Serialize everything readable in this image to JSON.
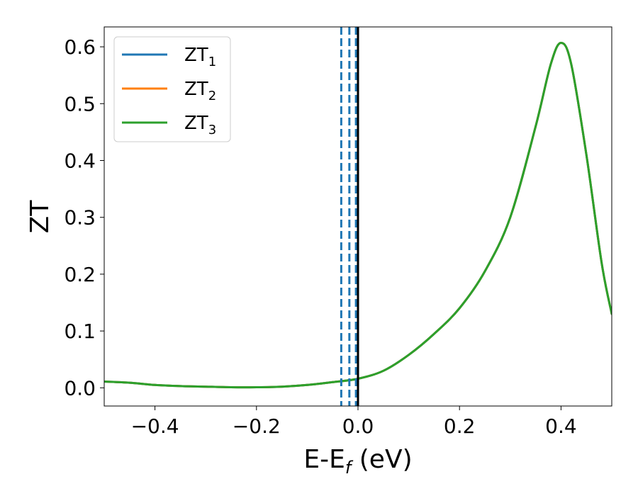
{
  "chart_data": {
    "type": "line",
    "xlabel_main": "E-E",
    "xlabel_sub": "f",
    "xlabel_unit": " (eV)",
    "ylabel": "ZT",
    "xlim": [
      -0.5,
      0.5
    ],
    "ylim": [
      -0.032,
      0.635
    ],
    "xticks": [
      -0.4,
      -0.2,
      0.0,
      0.2,
      0.4
    ],
    "xtick_labels": [
      "−0.4",
      "−0.2",
      "0.0",
      "0.2",
      "0.4"
    ],
    "yticks": [
      0.0,
      0.1,
      0.2,
      0.3,
      0.4,
      0.5,
      0.6
    ],
    "ytick_labels": [
      "0.0",
      "0.1",
      "0.2",
      "0.3",
      "0.4",
      "0.5",
      "0.6"
    ],
    "grid": false,
    "legend_position": "top-left",
    "series": [
      {
        "name": "ZT",
        "subscript": "1",
        "color": "#1f77b4",
        "x": [
          -0.5,
          -0.45,
          -0.4,
          -0.35,
          -0.3,
          -0.25,
          -0.2,
          -0.15,
          -0.1,
          -0.05,
          0.0,
          0.05,
          0.1,
          0.15,
          0.2,
          0.25,
          0.3,
          0.35,
          0.38,
          0.4,
          0.42,
          0.45,
          0.48,
          0.5
        ],
        "y": [
          0.011,
          0.009,
          0.005,
          0.003,
          0.002,
          0.001,
          0.001,
          0.002,
          0.005,
          0.01,
          0.016,
          0.03,
          0.058,
          0.095,
          0.14,
          0.205,
          0.3,
          0.46,
          0.57,
          0.607,
          0.57,
          0.41,
          0.22,
          0.13
        ]
      },
      {
        "name": "ZT",
        "subscript": "2",
        "color": "#ff7f0e",
        "x": [
          -0.5,
          -0.45,
          -0.4,
          -0.35,
          -0.3,
          -0.25,
          -0.2,
          -0.15,
          -0.1,
          -0.05,
          0.0,
          0.05,
          0.1,
          0.15,
          0.2,
          0.25,
          0.3,
          0.35,
          0.38,
          0.4,
          0.42,
          0.45,
          0.48,
          0.5
        ],
        "y": [
          0.011,
          0.009,
          0.005,
          0.003,
          0.002,
          0.001,
          0.001,
          0.002,
          0.005,
          0.01,
          0.016,
          0.03,
          0.058,
          0.095,
          0.14,
          0.205,
          0.3,
          0.46,
          0.57,
          0.607,
          0.57,
          0.41,
          0.22,
          0.13
        ]
      },
      {
        "name": "ZT",
        "subscript": "3",
        "color": "#2ca02c",
        "x": [
          -0.5,
          -0.45,
          -0.4,
          -0.35,
          -0.3,
          -0.25,
          -0.2,
          -0.15,
          -0.1,
          -0.05,
          0.0,
          0.05,
          0.1,
          0.15,
          0.2,
          0.25,
          0.3,
          0.35,
          0.38,
          0.4,
          0.42,
          0.45,
          0.48,
          0.5
        ],
        "y": [
          0.011,
          0.009,
          0.005,
          0.003,
          0.002,
          0.001,
          0.001,
          0.002,
          0.005,
          0.01,
          0.016,
          0.03,
          0.058,
          0.095,
          0.14,
          0.205,
          0.3,
          0.46,
          0.57,
          0.607,
          0.57,
          0.41,
          0.22,
          0.13
        ]
      }
    ],
    "vertical_lines": [
      {
        "x": -0.033,
        "color": "#1f77b4",
        "style": "dashed"
      },
      {
        "x": -0.017,
        "color": "#1f77b4",
        "style": "dashed"
      },
      {
        "x": -0.004,
        "color": "#1f77b4",
        "style": "dashed"
      },
      {
        "x": 0.0,
        "color": "#000000",
        "style": "solid"
      }
    ]
  }
}
